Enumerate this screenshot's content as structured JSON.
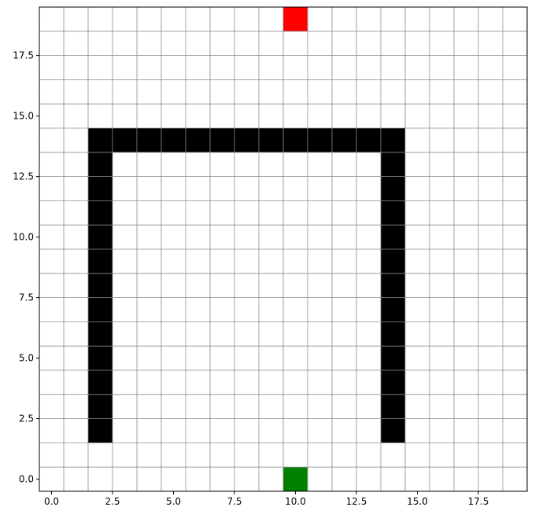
{
  "chart_data": {
    "type": "heatmap",
    "title": "",
    "xlabel": "",
    "ylabel": "",
    "xlim": [
      -0.5,
      19.5
    ],
    "ylim": [
      -0.5,
      19.5
    ],
    "grid": true,
    "grid_step": 1,
    "x_ticks": [
      {
        "value": 0.0,
        "label": "0.0"
      },
      {
        "value": 2.5,
        "label": "2.5"
      },
      {
        "value": 5.0,
        "label": "5.0"
      },
      {
        "value": 7.5,
        "label": "7.5"
      },
      {
        "value": 10.0,
        "label": "10.0"
      },
      {
        "value": 12.5,
        "label": "12.5"
      },
      {
        "value": 15.0,
        "label": "15.0"
      },
      {
        "value": 17.5,
        "label": "17.5"
      }
    ],
    "y_ticks": [
      {
        "value": 0.0,
        "label": "0.0"
      },
      {
        "value": 2.5,
        "label": "2.5"
      },
      {
        "value": 5.0,
        "label": "5.0"
      },
      {
        "value": 7.5,
        "label": "7.5"
      },
      {
        "value": 10.0,
        "label": "10.0"
      },
      {
        "value": 12.5,
        "label": "12.5"
      },
      {
        "value": 15.0,
        "label": "15.0"
      },
      {
        "value": 17.5,
        "label": "17.5"
      }
    ],
    "cells": [
      {
        "x": 2,
        "y": 2,
        "color": "#000000"
      },
      {
        "x": 2,
        "y": 3,
        "color": "#000000"
      },
      {
        "x": 2,
        "y": 4,
        "color": "#000000"
      },
      {
        "x": 2,
        "y": 5,
        "color": "#000000"
      },
      {
        "x": 2,
        "y": 6,
        "color": "#000000"
      },
      {
        "x": 2,
        "y": 7,
        "color": "#000000"
      },
      {
        "x": 2,
        "y": 8,
        "color": "#000000"
      },
      {
        "x": 2,
        "y": 9,
        "color": "#000000"
      },
      {
        "x": 2,
        "y": 10,
        "color": "#000000"
      },
      {
        "x": 2,
        "y": 11,
        "color": "#000000"
      },
      {
        "x": 2,
        "y": 12,
        "color": "#000000"
      },
      {
        "x": 2,
        "y": 13,
        "color": "#000000"
      },
      {
        "x": 2,
        "y": 14,
        "color": "#000000"
      },
      {
        "x": 3,
        "y": 14,
        "color": "#000000"
      },
      {
        "x": 4,
        "y": 14,
        "color": "#000000"
      },
      {
        "x": 5,
        "y": 14,
        "color": "#000000"
      },
      {
        "x": 6,
        "y": 14,
        "color": "#000000"
      },
      {
        "x": 7,
        "y": 14,
        "color": "#000000"
      },
      {
        "x": 8,
        "y": 14,
        "color": "#000000"
      },
      {
        "x": 9,
        "y": 14,
        "color": "#000000"
      },
      {
        "x": 10,
        "y": 14,
        "color": "#000000"
      },
      {
        "x": 11,
        "y": 14,
        "color": "#000000"
      },
      {
        "x": 12,
        "y": 14,
        "color": "#000000"
      },
      {
        "x": 13,
        "y": 14,
        "color": "#000000"
      },
      {
        "x": 14,
        "y": 14,
        "color": "#000000"
      },
      {
        "x": 14,
        "y": 2,
        "color": "#000000"
      },
      {
        "x": 14,
        "y": 3,
        "color": "#000000"
      },
      {
        "x": 14,
        "y": 4,
        "color": "#000000"
      },
      {
        "x": 14,
        "y": 5,
        "color": "#000000"
      },
      {
        "x": 14,
        "y": 6,
        "color": "#000000"
      },
      {
        "x": 14,
        "y": 7,
        "color": "#000000"
      },
      {
        "x": 14,
        "y": 8,
        "color": "#000000"
      },
      {
        "x": 14,
        "y": 9,
        "color": "#000000"
      },
      {
        "x": 14,
        "y": 10,
        "color": "#000000"
      },
      {
        "x": 14,
        "y": 11,
        "color": "#000000"
      },
      {
        "x": 14,
        "y": 12,
        "color": "#000000"
      },
      {
        "x": 14,
        "y": 13,
        "color": "#000000"
      },
      {
        "x": 10,
        "y": 19,
        "color": "#ff0000"
      },
      {
        "x": 10,
        "y": 0,
        "color": "#008000"
      }
    ]
  }
}
